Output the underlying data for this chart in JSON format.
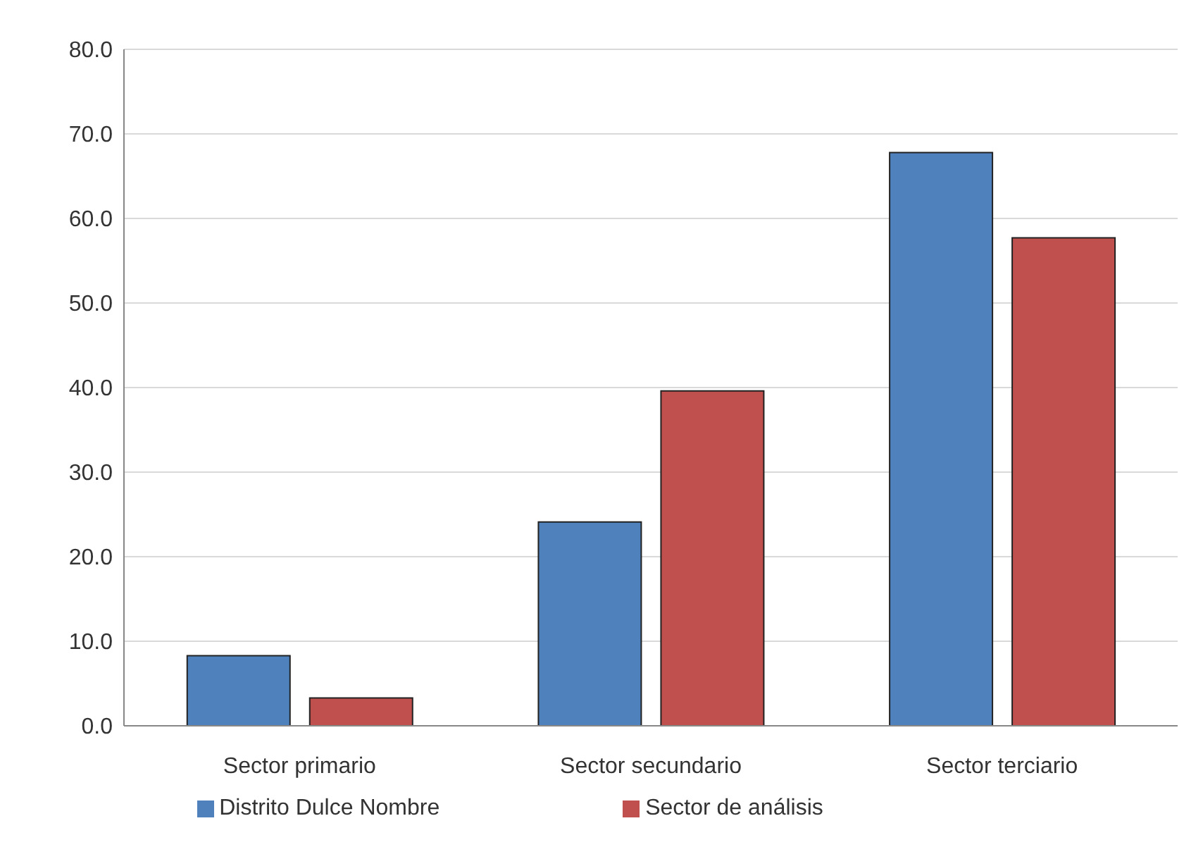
{
  "chart_data": {
    "type": "bar",
    "categories": [
      "Sector primario",
      "Sector secundario",
      "Sector terciario"
    ],
    "series": [
      {
        "name": "Distrito Dulce Nombre",
        "color": "#4f81bd",
        "values": [
          8.3,
          24.1,
          67.8
        ]
      },
      {
        "name": "Sector de análisis",
        "color": "#c0504d",
        "values": [
          3.3,
          39.6,
          57.7
        ]
      }
    ],
    "ylim": [
      0,
      80
    ],
    "yticks": [
      {
        "value": 0,
        "label": "0.0"
      },
      {
        "value": 10,
        "label": "10.0"
      },
      {
        "value": 20,
        "label": "20.0"
      },
      {
        "value": 30,
        "label": "30.0"
      },
      {
        "value": 40,
        "label": "40.0"
      },
      {
        "value": 50,
        "label": "50.0"
      },
      {
        "value": 60,
        "label": "60.0"
      },
      {
        "value": 70,
        "label": "70.0"
      },
      {
        "value": 80,
        "label": "80.0"
      }
    ],
    "grid": "y",
    "legend": "bottom"
  }
}
